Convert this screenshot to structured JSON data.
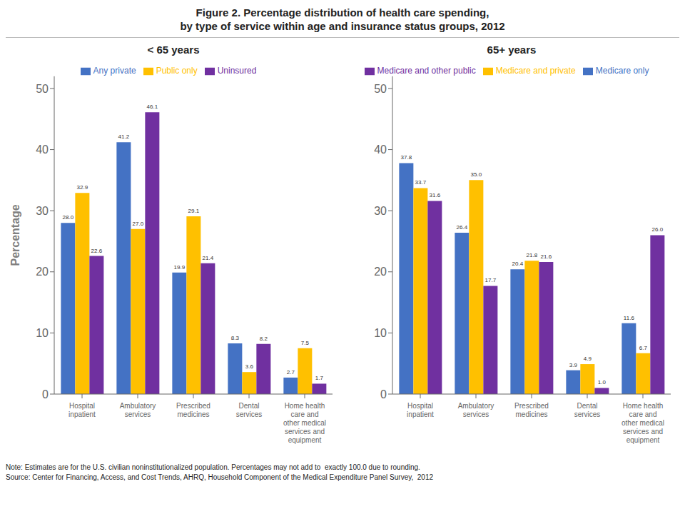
{
  "title": "Figure 2. Percentage distribution of health care spending,\nby type of service within age and insurance status groups, 2012",
  "annotations": [
    "Note: Estimates are for the U.S. civilian noninstitutionalized population. Percentages may not add to  exactly 100.0 due to rounding.",
    "Source: Center for Financing, Access, and Cost Trends, AHRQ, Household Component of the Medical Expenditure Panel Survey,  2012"
  ],
  "chart_data": [
    {
      "type": "bar",
      "subtitle": "< 65 years",
      "y_label": "Percentage",
      "categories": [
        "Hospital\ninpatient",
        "Ambulatory\nservices",
        "Prescribed\nmedicines",
        "Dental\nservices",
        "Home health\ncare and\nother medical\nservices and\nequipment"
      ],
      "series": [
        {
          "name": "Any private",
          "color": "#4472c4",
          "values": [
            28.0,
            41.2,
            19.9,
            8.3,
            2.7
          ],
          "value_labels": [
            "28.0",
            "41.2",
            "19.9",
            "8.3",
            "2.7"
          ]
        },
        {
          "name": "Public only",
          "color": "#ffc000",
          "values": [
            32.9,
            27.0,
            29.1,
            3.6,
            7.5
          ],
          "value_labels": [
            "32.9",
            "27.0",
            "29.1",
            "3.6",
            "7.5"
          ]
        },
        {
          "name": "Uninsured",
          "color": "#7030a0",
          "values": [
            22.6,
            46.1,
            21.4,
            8.2,
            1.7
          ],
          "value_labels": [
            "22.6",
            "46.1",
            "21.4",
            "8.2",
            "1.7"
          ]
        }
      ],
      "ylim": [
        0,
        52
      ],
      "yticks": [
        0,
        10,
        20,
        30,
        40,
        50
      ],
      "grid": false,
      "legend": "top",
      "data_labels": true
    },
    {
      "type": "bar",
      "subtitle": "65+ years",
      "categories": [
        "Hospital\ninpatient",
        "Ambulatory\nservices",
        "Prescribed\nmedicines",
        "Dental\nservices",
        "Home health\ncare and\nother medical\nservices and\nequipment"
      ],
      "series": [
        {
          "name": "Medicare only",
          "color": "#4472c4",
          "values": [
            37.8,
            26.4,
            20.4,
            3.9,
            11.6
          ],
          "value_labels": [
            "37.8",
            "26.4",
            "20.4",
            "3.9",
            "11.6"
          ]
        },
        {
          "name": "Medicare and private",
          "color": "#ffc000",
          "values": [
            33.7,
            35.0,
            21.8,
            4.9,
            6.7
          ],
          "value_labels": [
            "33.7",
            "35.0",
            "21.8",
            "4.9",
            "6.7"
          ]
        },
        {
          "name": "Medicare and other public",
          "color": "#7030a0",
          "values": [
            31.6,
            17.7,
            21.6,
            1.0,
            26.0
          ],
          "value_labels": [
            "31.6",
            "17.7",
            "21.6",
            "1.0",
            "26.0"
          ]
        }
      ],
      "ylim": [
        0,
        52
      ],
      "yticks": [
        0,
        10,
        20,
        30,
        40,
        50
      ],
      "grid": false,
      "legend": "top",
      "data_labels": true
    }
  ]
}
